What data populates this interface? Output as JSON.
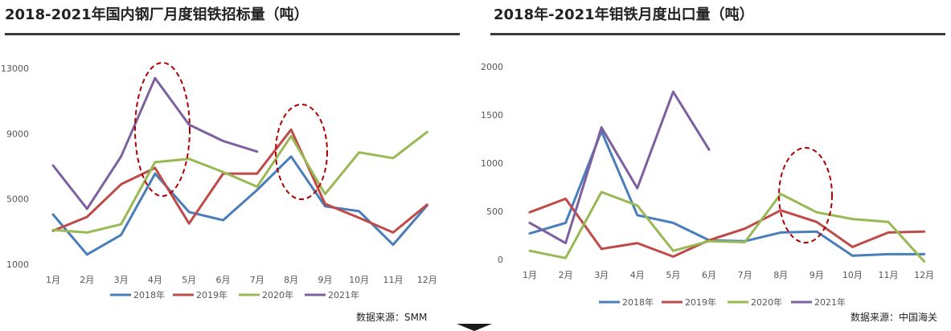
{
  "colors": {
    "s2018": "#4a7ebb",
    "s2019": "#be4b48",
    "s2020": "#98b954",
    "s2021": "#7d60a0",
    "ellipse": "#b00000"
  },
  "chart_data": [
    {
      "type": "line",
      "title": "2018-2021年国内钢厂月度钼铁招标量（吨）",
      "categories": [
        "1月",
        "2月",
        "3月",
        "4月",
        "5月",
        "6月",
        "7月",
        "8月",
        "9月",
        "10月",
        "11月",
        "12月"
      ],
      "ylim": [
        1000,
        13000
      ],
      "yticks": [
        "1000",
        "5000",
        "9000",
        "13000"
      ],
      "grid": false,
      "legend_position": "bottom",
      "series": [
        {
          "name": "2018年",
          "values": [
            4050,
            1600,
            2800,
            6550,
            4200,
            3700,
            5550,
            7600,
            4550,
            4250,
            2200,
            4600
          ]
        },
        {
          "name": "2019年",
          "values": [
            3050,
            3900,
            5900,
            6900,
            3500,
            6550,
            6550,
            9250,
            4700,
            3850,
            2950,
            4650
          ]
        },
        {
          "name": "2020年",
          "values": [
            3100,
            2950,
            3450,
            7250,
            7450,
            6650,
            5750,
            8850,
            5300,
            7850,
            7500,
            9100
          ]
        },
        {
          "name": "2021年",
          "values": [
            7050,
            4400,
            7600,
            12400,
            9550,
            8550,
            7900,
            null,
            null,
            null,
            null,
            null
          ]
        }
      ],
      "annotations": [
        "dashed ellipse around 4月",
        "dashed ellipse around 8月"
      ],
      "source": "数据来源：SMM"
    },
    {
      "type": "line",
      "title": "2018年-2021年钼铁月度出口量（吨）",
      "categories": [
        "1月",
        "2月",
        "3月",
        "4月",
        "5月",
        "6月",
        "7月",
        "8月",
        "9月",
        "10月",
        "11月",
        "12月"
      ],
      "ylim": [
        0,
        2000
      ],
      "yticks": [
        "0",
        "500",
        "1000",
        "1500",
        "2000"
      ],
      "grid": false,
      "legend_position": "bottom",
      "series": [
        {
          "name": "2018年",
          "values": [
            270,
            380,
            1330,
            460,
            380,
            200,
            190,
            280,
            290,
            40,
            55,
            55
          ]
        },
        {
          "name": "2019年",
          "values": [
            490,
            630,
            110,
            170,
            30,
            200,
            320,
            510,
            390,
            130,
            280,
            290
          ]
        },
        {
          "name": "2020年",
          "values": [
            90,
            15,
            700,
            560,
            90,
            190,
            180,
            680,
            490,
            420,
            390,
            -20
          ]
        },
        {
          "name": "2021年",
          "values": [
            380,
            170,
            1370,
            740,
            1740,
            1140,
            null,
            null,
            null,
            null,
            null,
            null
          ]
        }
      ],
      "annotations": [
        "dashed ellipse around 9月"
      ],
      "source": "数据来源：中国海关"
    }
  ]
}
